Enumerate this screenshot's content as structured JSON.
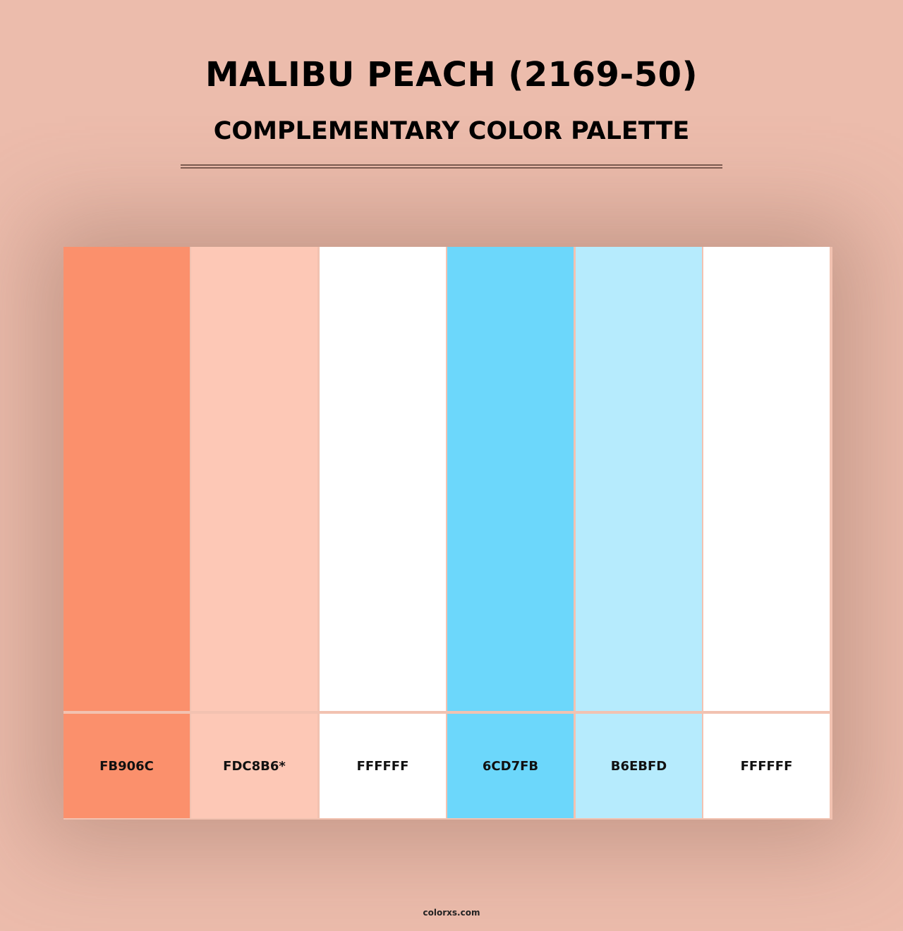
{
  "title": "MALIBU PEACH (2169-50)",
  "subtitle": "COMPLEMENTARY COLOR PALETTE",
  "colors": [
    {
      "hex": "FB906C",
      "color": "#FB906C"
    },
    {
      "hex": "FDC8B6*",
      "color": "#FDC8B6"
    },
    {
      "hex": "FFFFFF",
      "color": "#FFFFFF"
    },
    {
      "hex": "6CD7FB",
      "color": "#6CD7FB"
    },
    {
      "hex": "B6EBFD",
      "color": "#B6EBFD"
    },
    {
      "hex": "FFFFFF",
      "color": "#FFFFFF"
    }
  ],
  "footer": "colorxs.com"
}
